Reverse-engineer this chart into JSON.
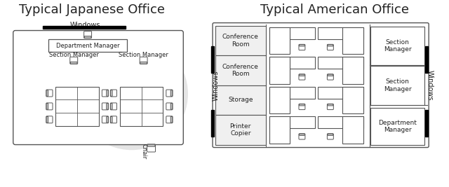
{
  "title_japanese": "Typical Japanese Office",
  "title_american": "Typical American Office",
  "bg_color": "#ffffff",
  "edge_color": "#555555",
  "text_color": "#222222",
  "label_windows_jp": "Windows",
  "label_windows_am": "Windows",
  "label_chair": "Chair",
  "gray_circle": "#e5e5e5",
  "box_fill": "#f0f0f0",
  "white": "#ffffff",
  "black": "#000000"
}
